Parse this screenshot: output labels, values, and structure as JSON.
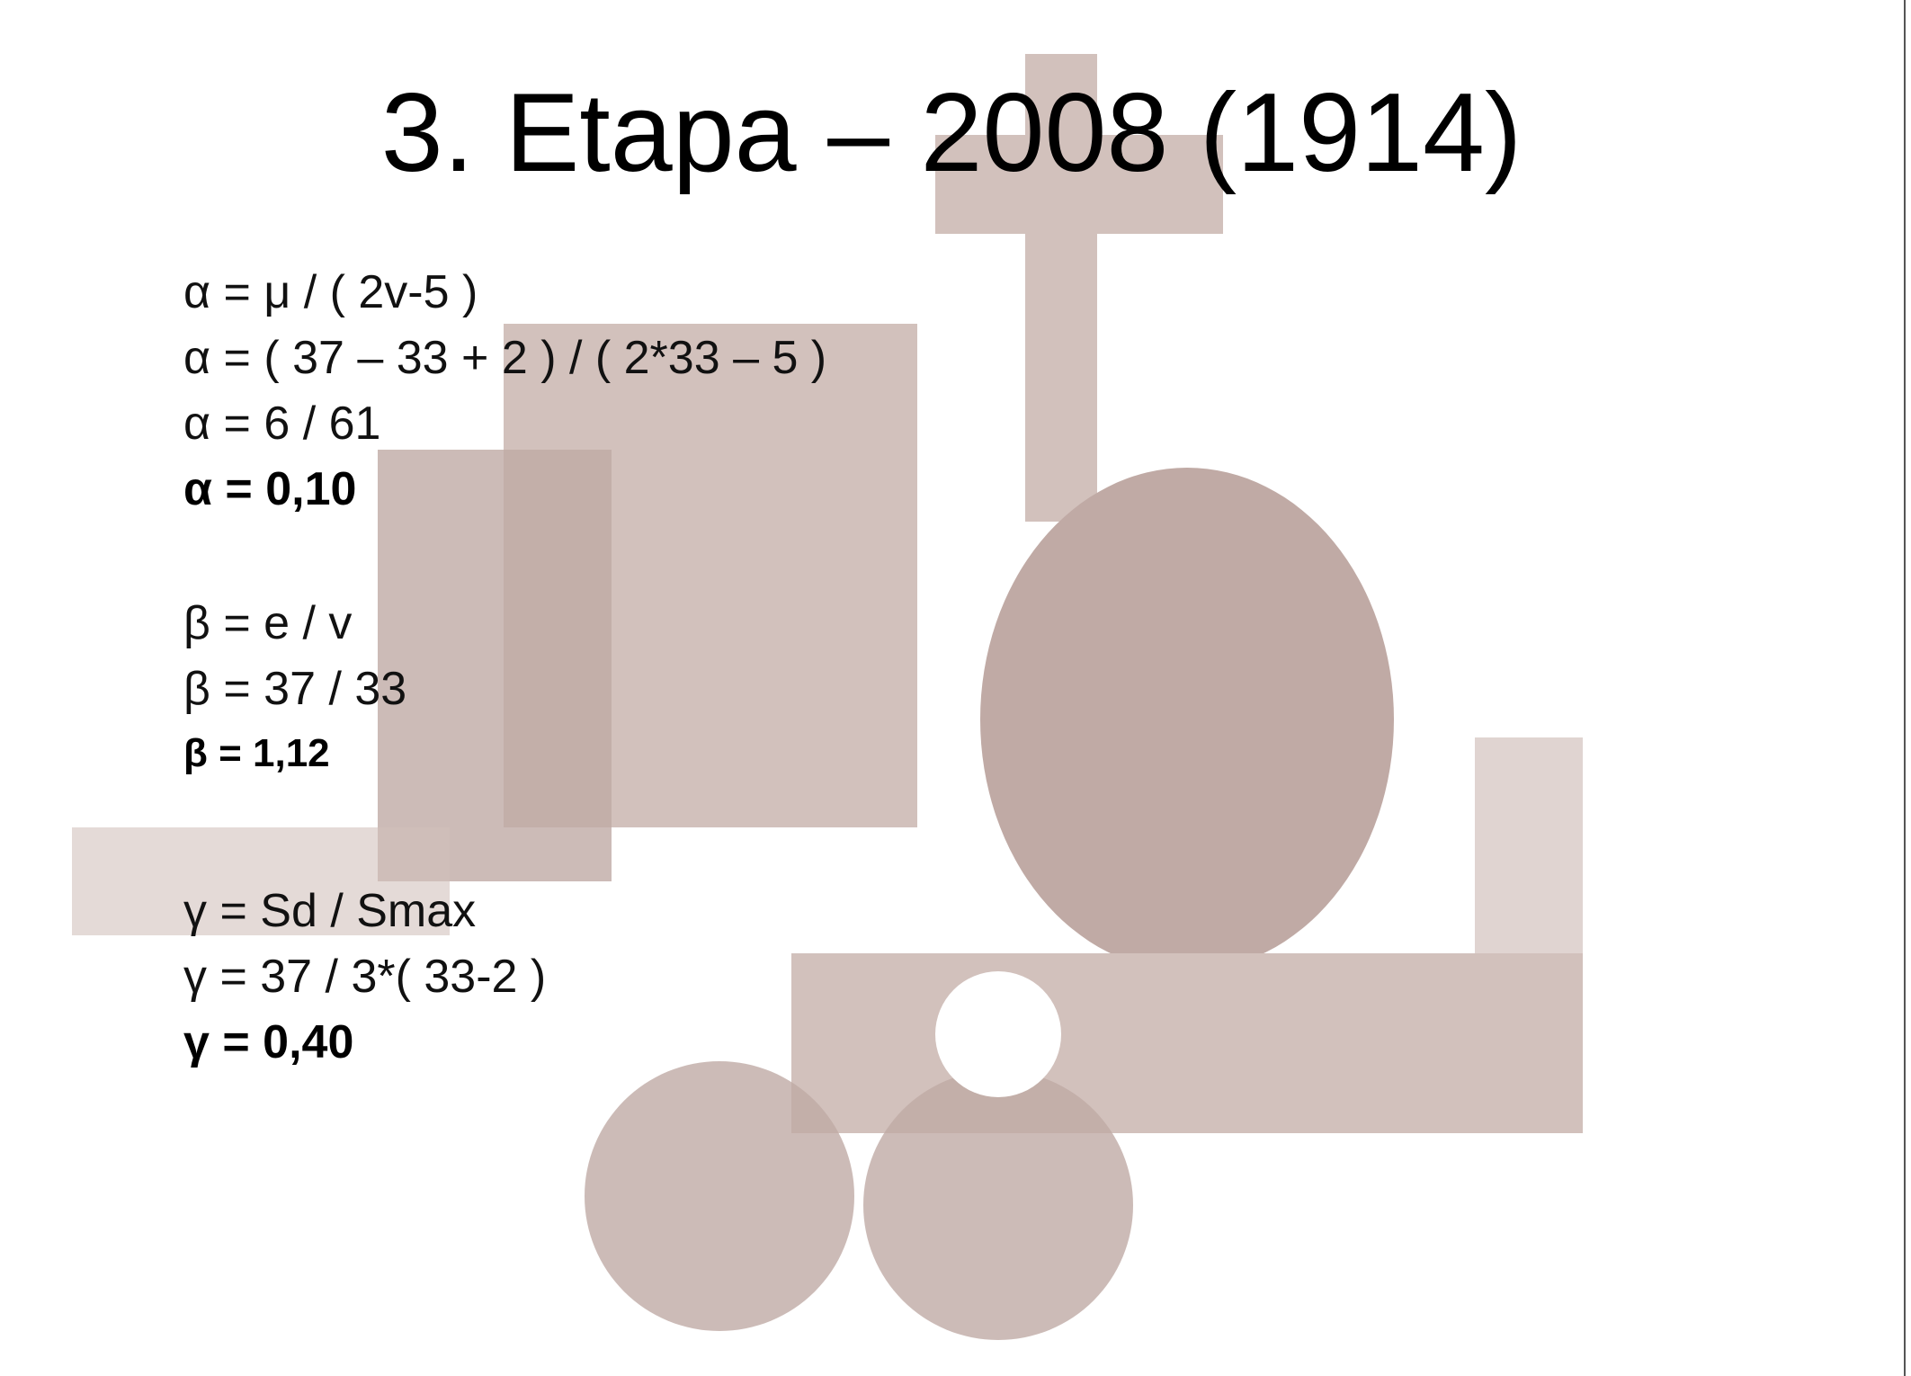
{
  "slide": {
    "title": "3. Etapa – 2008 (1914)",
    "groups": [
      {
        "lines": [
          "α = μ / ( 2v-5 )",
          "α = ( 37 – 33 + 2 ) / ( 2*33 – 5 )",
          "α = 6 / 61"
        ],
        "result": "α = 0,10"
      },
      {
        "lines": [
          "β = e / v",
          "β = 37 / 33"
        ],
        "result": "β = 1,12"
      },
      {
        "lines": [
          "γ = Sd / Smax",
          "γ = 37 / 3*( 33-2 )"
        ],
        "result": "γ = 0,40"
      }
    ]
  }
}
